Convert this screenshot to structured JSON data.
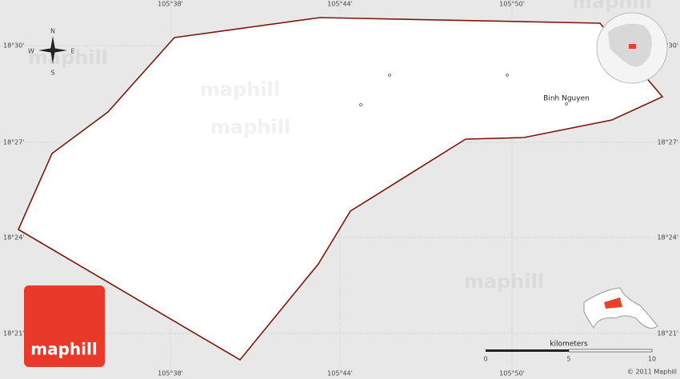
{
  "map": {
    "top_labels": [
      "105°38'",
      "105°44'",
      "105°50'"
    ],
    "bottom_labels": [
      "105°38'",
      "105°44'",
      "105°50'"
    ],
    "left_labels": [
      "18°30'",
      "18°27'",
      "18°24'",
      "18°21'"
    ],
    "right_labels": [
      "18°30'",
      "18°27'",
      "18°24'",
      "18°21'"
    ],
    "places": [
      {
        "label": "Binh Nguyen"
      }
    ],
    "compass": {
      "n": "N",
      "e": "E",
      "s": "S",
      "w": "W"
    },
    "scale": {
      "title": "kilometers",
      "ticks": [
        0,
        5,
        10
      ]
    },
    "logo": "maphill",
    "copyright": "© 2011 Maphill",
    "watermarks": [
      "maphill",
      "maphill",
      "maphill",
      "maphill",
      "maphill"
    ]
  }
}
